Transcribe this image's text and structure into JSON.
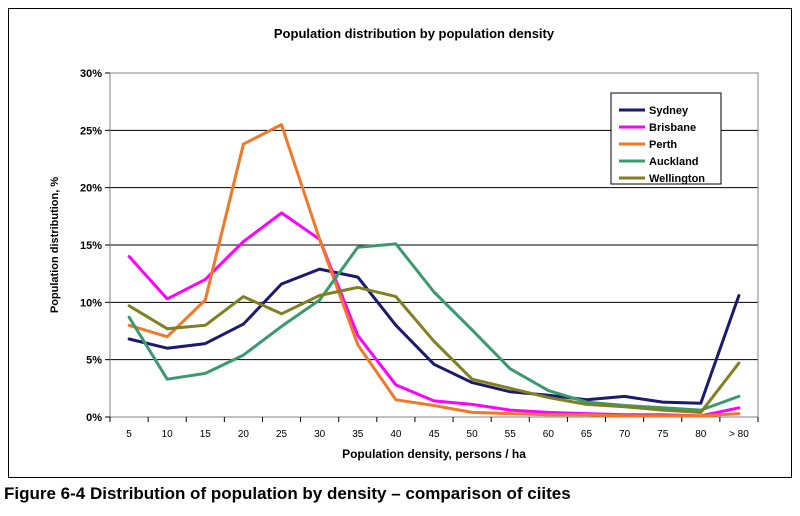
{
  "figure": {
    "caption": "Figure 6-4 Distribution of population by density – comparison of ciites"
  },
  "chart_data": {
    "type": "line",
    "title": "Population distribution by population density",
    "xlabel": "Population density, persons / ha",
    "ylabel": "Population distribution, %",
    "categories": [
      "5",
      "10",
      "15",
      "20",
      "25",
      "30",
      "35",
      "40",
      "45",
      "50",
      "55",
      "60",
      "65",
      "70",
      "75",
      "80",
      "> 80"
    ],
    "yticks": [
      "0%",
      "5%",
      "10%",
      "15%",
      "20%",
      "25%",
      "30%"
    ],
    "ylim": [
      0,
      30
    ],
    "grid": true,
    "legend_position": "top-right",
    "series": [
      {
        "name": "Sydney",
        "color": "#1a1a6e",
        "values": [
          6.8,
          6.0,
          6.4,
          8.1,
          11.6,
          12.9,
          12.2,
          8.0,
          4.6,
          3.0,
          2.2,
          1.9,
          1.5,
          1.8,
          1.3,
          1.2,
          10.6
        ]
      },
      {
        "name": "Brisbane",
        "color": "#ff00ff",
        "values": [
          14.0,
          10.3,
          12.0,
          15.3,
          17.8,
          15.5,
          7.1,
          2.8,
          1.4,
          1.1,
          0.6,
          0.4,
          0.3,
          0.2,
          0.2,
          0.1,
          0.8
        ]
      },
      {
        "name": "Perth",
        "color": "#f07828",
        "values": [
          8.0,
          7.0,
          10.2,
          23.8,
          25.5,
          15.5,
          6.3,
          1.5,
          1.0,
          0.4,
          0.3,
          0.2,
          0.2,
          0.1,
          0.1,
          0.1,
          0.3
        ]
      },
      {
        "name": "Auckland",
        "color": "#3a9a6e",
        "values": [
          8.7,
          3.3,
          3.8,
          5.4,
          7.9,
          10.2,
          14.8,
          15.1,
          10.9,
          7.6,
          4.2,
          2.3,
          1.3,
          1.0,
          0.8,
          0.6,
          1.8
        ]
      },
      {
        "name": "Wellington",
        "color": "#808020",
        "values": [
          9.7,
          7.7,
          8.0,
          10.5,
          9.0,
          10.6,
          11.3,
          10.5,
          6.6,
          3.3,
          2.5,
          1.7,
          1.1,
          0.9,
          0.6,
          0.4,
          4.7
        ]
      }
    ]
  }
}
